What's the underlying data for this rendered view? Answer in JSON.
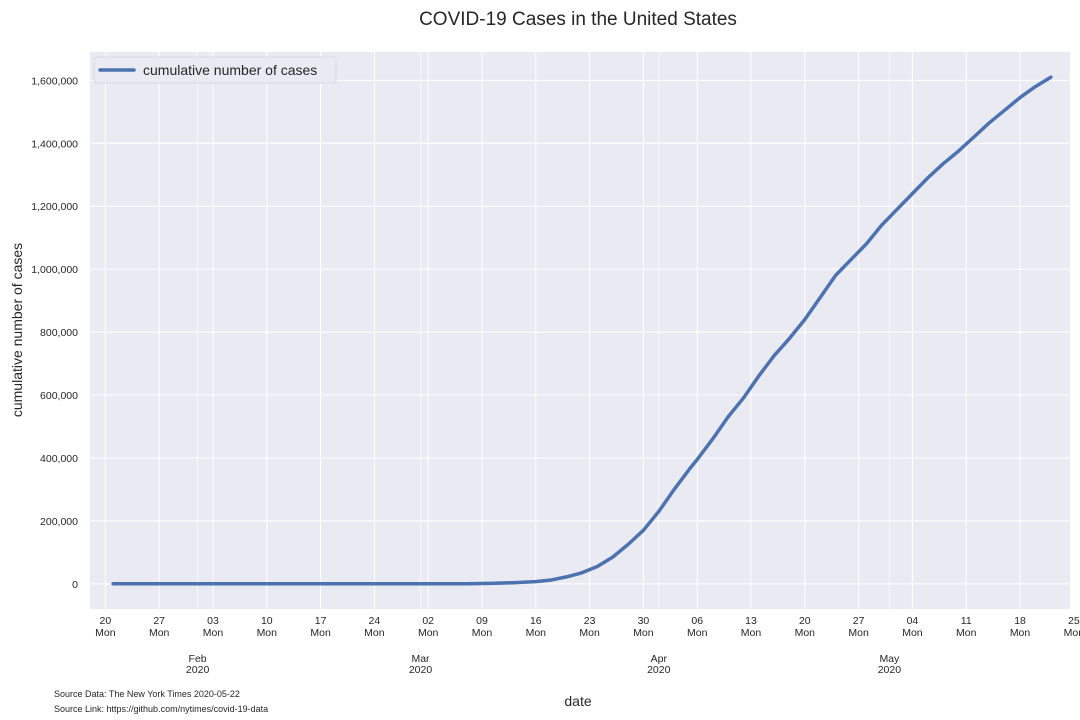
{
  "chart_data": {
    "type": "line",
    "title": "COVID-19 Cases in the United States",
    "xlabel": "date",
    "ylabel": "cumulative number of cases",
    "legend": {
      "label": "cumulative number of cases",
      "placement": "top-left"
    },
    "grid": true,
    "x_range_days": [
      -2,
      125.5
    ],
    "ylim": [
      -80000,
      1690000
    ],
    "yticks": [
      0,
      200000,
      400000,
      600000,
      800000,
      1000000,
      1200000,
      1400000,
      1600000
    ],
    "ytick_labels": [
      "0",
      "200,000",
      "400,000",
      "600,000",
      "800,000",
      "1,000,000",
      "1,200,000",
      "1,400,000",
      "1,600,000"
    ],
    "xticks": [
      {
        "day": 0,
        "label": "20"
      },
      {
        "day": 7,
        "label": "27"
      },
      {
        "day": 14,
        "label": "03"
      },
      {
        "day": 21,
        "label": "10"
      },
      {
        "day": 28,
        "label": "17"
      },
      {
        "day": 35,
        "label": "24"
      },
      {
        "day": 42,
        "label": "02"
      },
      {
        "day": 49,
        "label": "09"
      },
      {
        "day": 56,
        "label": "16"
      },
      {
        "day": 63,
        "label": "23"
      },
      {
        "day": 70,
        "label": "30"
      },
      {
        "day": 77,
        "label": "06"
      },
      {
        "day": 84,
        "label": "13"
      },
      {
        "day": 91,
        "label": "20"
      },
      {
        "day": 98,
        "label": "27"
      },
      {
        "day": 105,
        "label": "04"
      },
      {
        "day": 112,
        "label": "11"
      },
      {
        "day": 119,
        "label": "18"
      },
      {
        "day": 126,
        "label": "25"
      }
    ],
    "weekday_label": "Mon",
    "minor_gridline_days": [
      12,
      41,
      72,
      102
    ],
    "month_labels": [
      {
        "day": 12,
        "month": "Feb",
        "year": "2020"
      },
      {
        "day": 41,
        "month": "Mar",
        "year": "2020"
      },
      {
        "day": 72,
        "month": "Apr",
        "year": "2020"
      },
      {
        "day": 102,
        "month": "May",
        "year": "2020"
      }
    ],
    "series": [
      {
        "name": "cumulative number of cases",
        "color": "#4c72b0",
        "x_days": [
          1,
          10,
          20,
          30,
          40,
          47,
          50,
          53,
          56,
          58,
          60,
          62,
          64,
          66,
          68,
          70,
          72,
          74,
          76,
          77,
          79,
          81,
          83,
          85,
          87,
          89,
          91,
          93,
          95,
          97,
          99,
          101,
          103,
          105,
          107,
          109,
          111,
          113,
          115,
          117,
          119,
          121,
          123
        ],
        "y_values": [
          1,
          10,
          15,
          30,
          100,
          500,
          1500,
          3500,
          7000,
          12000,
          22000,
          35000,
          55000,
          85000,
          125000,
          170000,
          230000,
          300000,
          365000,
          395000,
          460000,
          530000,
          590000,
          660000,
          725000,
          780000,
          840000,
          910000,
          980000,
          1030000,
          1080000,
          1140000,
          1190000,
          1240000,
          1290000,
          1335000,
          1375000,
          1420000,
          1465000,
          1505000,
          1545000,
          1580000,
          1610000
        ]
      }
    ]
  },
  "footer": {
    "source_data": "Source Data: The New York Times 2020-05-22",
    "source_link": "Source Link: https://github.com/nytimes/covid-19-data"
  },
  "colors": {
    "plot_bg": "#eaeaf2",
    "grid": "#ffffff",
    "line": "#4c72b0"
  }
}
